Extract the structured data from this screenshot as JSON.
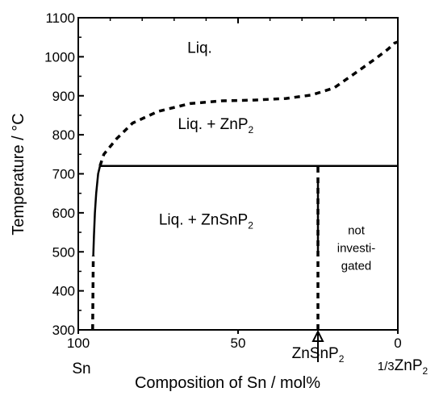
{
  "chart_data": {
    "type": "line",
    "title": "",
    "xlabel": "Composition of Sn / mol%",
    "ylabel": "Temperature / °C",
    "xlim": [
      100,
      0
    ],
    "ylim": [
      300,
      1100
    ],
    "x_ticks": [
      "100",
      "50",
      "0"
    ],
    "x_tick_values": [
      100,
      50,
      0
    ],
    "y_ticks": [
      "300",
      "400",
      "500",
      "600",
      "700",
      "800",
      "900",
      "1000",
      "1100"
    ],
    "y_tick_values": [
      300,
      400,
      500,
      600,
      700,
      800,
      900,
      1000,
      1100
    ],
    "grid": false,
    "series": [
      {
        "style": "solid",
        "points": [
          [
            95.3,
            490
          ],
          [
            95.1,
            540
          ],
          [
            94.8,
            600
          ],
          [
            94.4,
            650
          ],
          [
            93.8,
            700
          ],
          [
            93.2,
            720
          ]
        ]
      },
      {
        "style": "dashed",
        "points": [
          [
            93.2,
            720
          ],
          [
            92,
            750
          ],
          [
            88,
            790
          ],
          [
            83,
            830
          ],
          [
            75,
            860
          ],
          [
            65,
            880
          ],
          [
            55,
            887
          ],
          [
            45,
            889
          ],
          [
            35,
            893
          ],
          [
            27,
            902
          ],
          [
            20,
            920
          ],
          [
            13,
            960
          ],
          [
            7,
            995
          ],
          [
            3,
            1020
          ],
          [
            1,
            1035
          ],
          [
            0,
            1038
          ]
        ]
      },
      {
        "style": "solid",
        "points": [
          [
            93.2,
            720
          ],
          [
            0,
            720
          ]
        ]
      },
      {
        "style": "dashed",
        "points": [
          [
            95.5,
            300
          ],
          [
            95.3,
            490
          ]
        ]
      },
      {
        "style": "dashed",
        "points": [
          [
            25,
            300
          ],
          [
            25,
            720
          ]
        ]
      },
      {
        "style": "solid",
        "points": [
          [
            25,
            500
          ],
          [
            25,
            685
          ]
        ]
      }
    ],
    "regions": [
      {
        "text": "Liq.",
        "subscript": "",
        "x": 62,
        "y": 1010
      },
      {
        "text": "Liq. + ZnP",
        "subscript": "2",
        "x": 57,
        "y": 815
      },
      {
        "text": "Liq. + ZnSnP",
        "subscript": "2",
        "x": 60,
        "y": 570
      }
    ],
    "annotations": [
      {
        "name": "note",
        "lines": [
          "not",
          "investi-",
          "gated"
        ],
        "x": 13,
        "y": 545
      },
      {
        "name": "znsnp2-arrow",
        "x": 25,
        "y_from": 300,
        "y_to": 270
      }
    ],
    "composition_labels": [
      {
        "text": "Sn",
        "subscript": "",
        "prefix": ""
      },
      {
        "text": "ZnSnP",
        "subscript": "2",
        "prefix": ""
      },
      {
        "text": "ZnP",
        "subscript": "2",
        "prefix": "1/3"
      }
    ]
  }
}
